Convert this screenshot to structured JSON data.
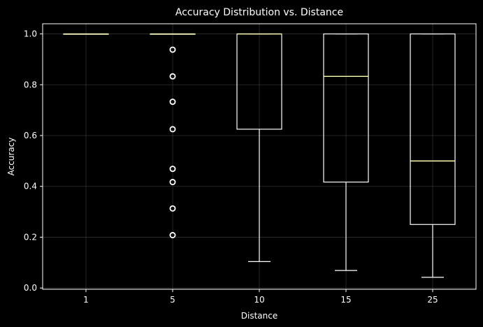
{
  "chart_data": {
    "type": "box",
    "title": "Accuracy Distribution vs. Distance",
    "xlabel": "Distance",
    "ylabel": "Accuracy",
    "categories": [
      "1",
      "5",
      "10",
      "15",
      "25"
    ],
    "ylim": [
      -0.005,
      1.04
    ],
    "yticks": [
      0.0,
      0.2,
      0.4,
      0.6,
      0.8,
      1.0
    ],
    "ytick_labels": [
      "0.0",
      "0.2",
      "0.4",
      "0.6",
      "0.8",
      "1.0"
    ],
    "grid": true,
    "boxes": [
      {
        "category": "1",
        "whisker_low": 1.0,
        "q1": 1.0,
        "median": 1.0,
        "q3": 1.0,
        "whisker_high": 1.0,
        "outliers": []
      },
      {
        "category": "5",
        "whisker_low": 1.0,
        "q1": 1.0,
        "median": 1.0,
        "q3": 1.0,
        "whisker_high": 1.0,
        "outliers": [
          0.938,
          0.833,
          0.733,
          0.625,
          0.469,
          0.417,
          0.313,
          0.208
        ]
      },
      {
        "category": "10",
        "whisker_low": 0.104,
        "q1": 0.625,
        "median": 1.0,
        "q3": 1.0,
        "whisker_high": 1.0,
        "outliers": []
      },
      {
        "category": "15",
        "whisker_low": 0.069,
        "q1": 0.417,
        "median": 0.833,
        "q3": 1.0,
        "whisker_high": 1.0,
        "outliers": []
      },
      {
        "category": "25",
        "whisker_low": 0.042,
        "q1": 0.25,
        "median": 0.5,
        "q3": 1.0,
        "whisker_high": 1.0,
        "outliers": []
      }
    ]
  },
  "colors": {
    "background": "#000000",
    "box": "#ffffff",
    "median": "#ffffb3",
    "grid": "#444444",
    "axis": "#ffffff",
    "text": "#ffffff"
  }
}
